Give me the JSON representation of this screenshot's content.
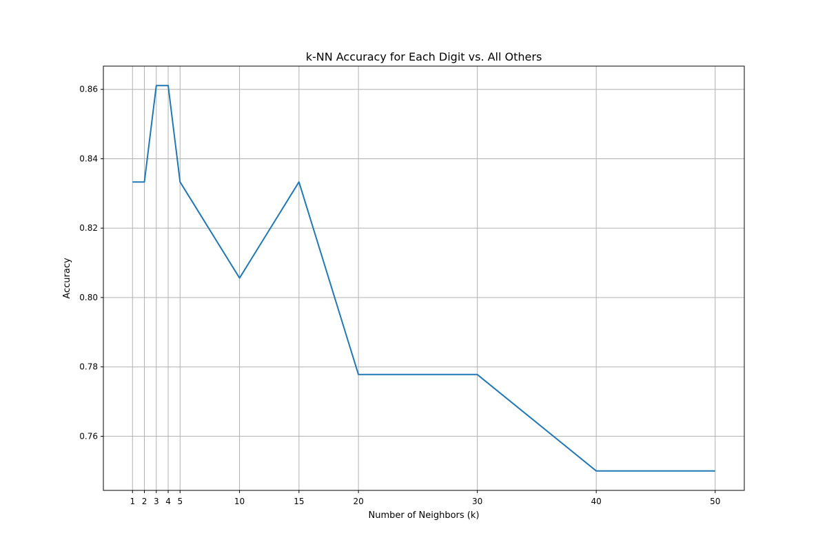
{
  "chart_data": {
    "type": "line",
    "title": "k-NN Accuracy for Each Digit vs. All Others",
    "xlabel": "Number of Neighbors (k)",
    "ylabel": "Accuracy",
    "x": [
      1,
      2,
      3,
      4,
      5,
      10,
      15,
      20,
      30,
      40,
      50
    ],
    "series": [
      {
        "values": [
          0.8333,
          0.8333,
          0.8611,
          0.8611,
          0.8333,
          0.8056,
          0.8333,
          0.7778,
          0.7778,
          0.75,
          0.75
        ],
        "color": "#1f77b4"
      }
    ],
    "xticks": [
      1,
      2,
      3,
      4,
      5,
      10,
      15,
      20,
      30,
      40,
      50
    ],
    "yticks": [
      0.76,
      0.78,
      0.8,
      0.82,
      0.84,
      0.86
    ],
    "ytick_labels": [
      "0.76",
      "0.78",
      "0.80",
      "0.82",
      "0.84",
      "0.86"
    ],
    "xlim": [
      -1.45,
      52.45
    ],
    "ylim": [
      0.7444,
      0.8667
    ],
    "grid": true
  }
}
